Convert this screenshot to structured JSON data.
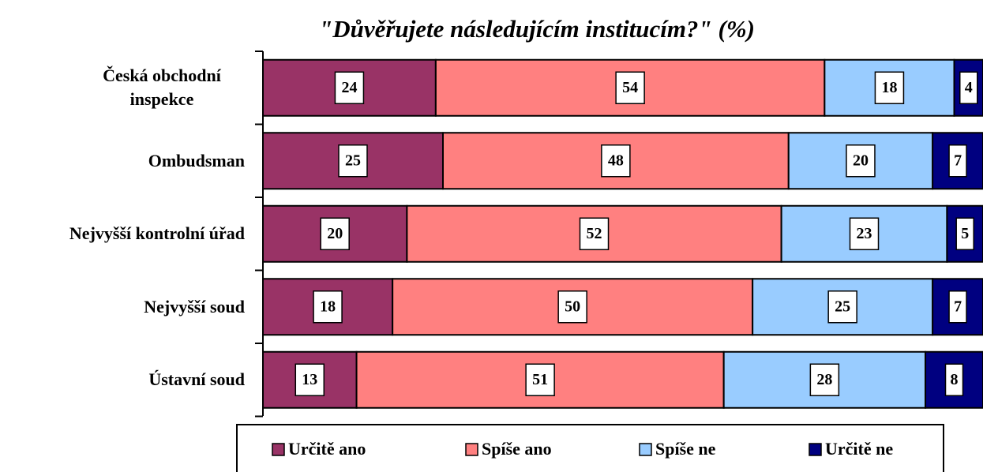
{
  "chart_data": {
    "type": "stacked-bar-horizontal",
    "title": "\"Důvěřujete následujícím institucím?\"  (%)",
    "categories": [
      "Česká obchodní inspekce",
      "Ombudsman",
      "Nejvyšší kontrolní úřad",
      "Nejvyšší soud",
      "Ústavní soud"
    ],
    "series": [
      {
        "name": "Určitě ano",
        "color": "#993366",
        "values": [
          24,
          25,
          20,
          18,
          13
        ]
      },
      {
        "name": "Spíše ano",
        "color": "#ff8080",
        "values": [
          54,
          48,
          52,
          50,
          51
        ]
      },
      {
        "name": "Spíše ne",
        "color": "#99ccff",
        "values": [
          18,
          20,
          23,
          25,
          28
        ]
      },
      {
        "name": "Určitě ne",
        "color": "#000080",
        "values": [
          4,
          7,
          5,
          7,
          8
        ]
      }
    ],
    "xlim": [
      0,
      100
    ],
    "legend": "bottom"
  }
}
